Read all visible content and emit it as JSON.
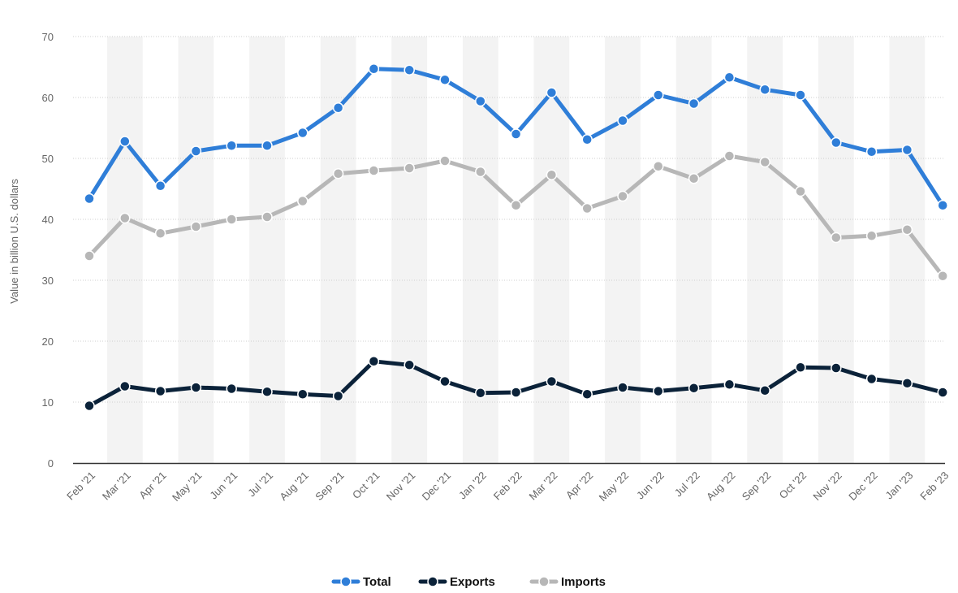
{
  "chart_data": {
    "type": "line",
    "title": "",
    "xlabel": "",
    "ylabel": "Value in billion U.S. dollars",
    "ylim": [
      0,
      70
    ],
    "yticks": [
      0,
      10,
      20,
      30,
      40,
      50,
      60,
      70
    ],
    "grid": true,
    "legend_position": "bottom-center",
    "categories": [
      "Feb '21",
      "Mar '21",
      "Apr '21",
      "May '21",
      "Jun '21",
      "Jul '21",
      "Aug '21",
      "Sep '21",
      "Oct '21",
      "Nov '21",
      "Dec '21",
      "Jan '22",
      "Feb '22",
      "Mar '22",
      "Apr '22",
      "May '22",
      "Jun '22",
      "Jul '22",
      "Aug '22",
      "Sep '22",
      "Oct '22",
      "Nov '22",
      "Dec '22",
      "Jan '23",
      "Feb '23"
    ],
    "series": [
      {
        "name": "Total",
        "color": "#2f7ed8",
        "values": [
          43.4,
          52.8,
          45.5,
          51.2,
          52.1,
          52.1,
          54.2,
          58.3,
          64.7,
          64.5,
          62.9,
          59.4,
          54.0,
          60.8,
          53.1,
          56.2,
          60.4,
          59.0,
          63.3,
          61.3,
          60.4,
          52.6,
          51.1,
          51.4,
          42.3
        ]
      },
      {
        "name": "Exports",
        "color": "#0b2239",
        "values": [
          9.4,
          12.6,
          11.8,
          12.4,
          12.2,
          11.7,
          11.3,
          11.0,
          16.7,
          16.1,
          13.4,
          11.5,
          11.6,
          13.4,
          11.3,
          12.4,
          11.8,
          12.3,
          12.9,
          11.9,
          15.7,
          15.6,
          13.8,
          13.1,
          11.6
        ]
      },
      {
        "name": "Imports",
        "color": "#b7b7b7",
        "values": [
          34.0,
          40.2,
          37.7,
          38.8,
          40.0,
          40.4,
          43.0,
          47.5,
          48.0,
          48.4,
          49.6,
          47.8,
          42.3,
          47.3,
          41.8,
          43.8,
          48.7,
          46.7,
          50.4,
          49.4,
          44.6,
          37.0,
          37.3,
          38.3,
          30.7
        ]
      }
    ]
  }
}
